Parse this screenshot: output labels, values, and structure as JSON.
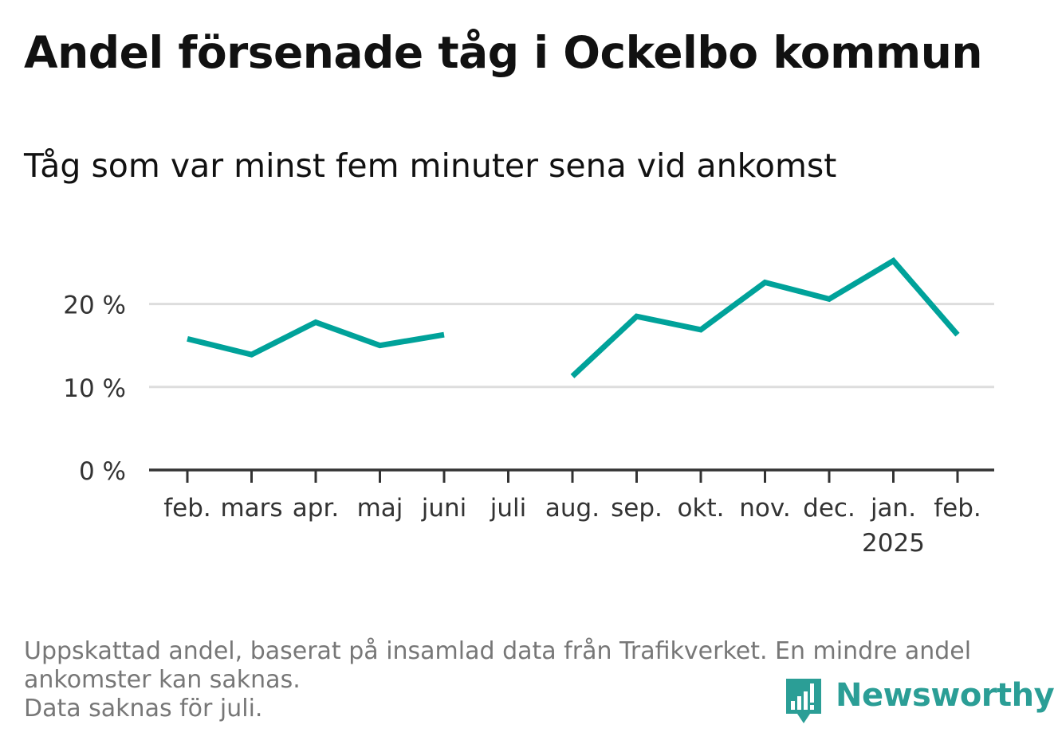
{
  "header": {
    "title": "Andel försenade tåg i Ockelbo kommun",
    "subtitle": "Tåg som var minst fem minuter sena vid ankomst"
  },
  "chart_data": {
    "type": "line",
    "categories": [
      "feb.",
      "mars",
      "apr.",
      "maj",
      "juni",
      "juli",
      "aug.",
      "sep.",
      "okt.",
      "nov.",
      "dec.",
      "jan.",
      "feb."
    ],
    "category_sublabels": [
      "",
      "",
      "",
      "",
      "",
      "",
      "",
      "",
      "",
      "",
      "",
      "2025",
      ""
    ],
    "series": [
      {
        "values": [
          15.8,
          13.9,
          17.8,
          15.0,
          16.3,
          null,
          11.3,
          18.5,
          16.9,
          22.6,
          20.6,
          25.2,
          16.3
        ],
        "color": "#00a29a"
      }
    ],
    "yticks": [
      0,
      10,
      20
    ],
    "ytick_labels": [
      "0 %",
      "10 %",
      "20 %"
    ],
    "ylim": [
      0,
      26
    ],
    "grid": true,
    "legend": "none"
  },
  "footer": {
    "note_lines": [
      "Uppskattad andel, baserat på insamlad data från Trafikverket. En mindre andel",
      "ankomster kan saknas.",
      "Data saknas för juli."
    ],
    "brand": "Newsworthy",
    "brand_color": "#2b9e96"
  }
}
